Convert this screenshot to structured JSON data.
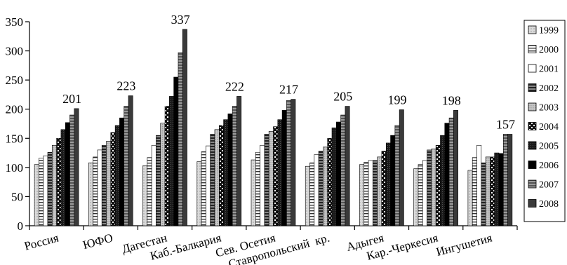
{
  "chart_data": {
    "type": "bar",
    "title": "",
    "xlabel": "",
    "ylabel": "",
    "ylim": [
      0,
      350
    ],
    "yticks": [
      "0",
      "50",
      "100",
      "150",
      "200",
      "250",
      "300",
      "350"
    ],
    "grid": false,
    "legend_position": "right",
    "categories": [
      "Россия",
      "ЮФО",
      "Дагестан",
      "Каб.-Балкария",
      "Сев. Осетия",
      "Ставропольский  кр.",
      "Адыгея",
      "Кар.-Черкесия",
      "Ингушетия"
    ],
    "series": [
      {
        "name": "1999",
        "values": [
          105,
          108,
          103,
          110,
          113,
          102,
          105,
          98,
          95
        ]
      },
      {
        "name": "2000",
        "values": [
          116,
          118,
          117,
          127,
          126,
          108,
          109,
          105,
          117
        ]
      },
      {
        "name": "2001",
        "values": [
          120,
          130,
          138,
          137,
          138,
          122,
          112,
          112,
          138
        ]
      },
      {
        "name": "2002",
        "values": [
          126,
          138,
          155,
          157,
          157,
          128,
          112,
          130,
          108
        ]
      },
      {
        "name": "2003",
        "values": [
          138,
          145,
          176,
          165,
          162,
          135,
          118,
          132,
          118
        ]
      },
      {
        "name": "2004",
        "values": [
          150,
          160,
          205,
          172,
          170,
          150,
          128,
          138,
          118
        ]
      },
      {
        "name": "2005",
        "values": [
          165,
          172,
          222,
          182,
          182,
          168,
          142,
          155,
          125
        ]
      },
      {
        "name": "2006",
        "values": [
          177,
          185,
          255,
          192,
          198,
          178,
          155,
          176,
          124
        ]
      },
      {
        "name": "2007",
        "values": [
          190,
          205,
          297,
          205,
          215,
          190,
          172,
          185,
          157
        ]
      },
      {
        "name": "2008",
        "values": [
          201,
          223,
          337,
          222,
          217,
          205,
          199,
          198,
          157
        ]
      }
    ],
    "data_labels": [
      "201",
      "223",
      "337",
      "222",
      "217",
      "205",
      "199",
      "198",
      "157"
    ]
  }
}
